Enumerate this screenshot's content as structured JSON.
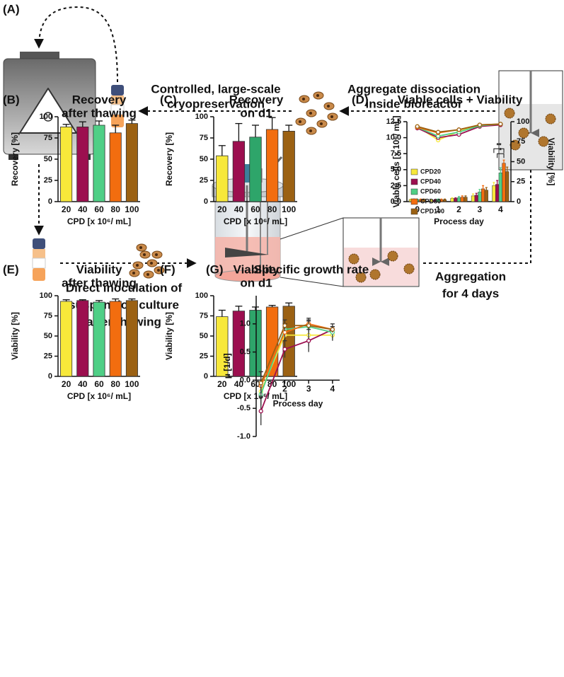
{
  "diagram": {
    "label": "(A)",
    "steps": [
      [
        "Controlled, large-scale",
        "cryopreservation"
      ],
      [
        "Aggregate dissociation",
        "inside bioreactor"
      ],
      [
        "Direct inoculation of",
        "suspension culture",
        "after thawing"
      ],
      [
        "Aggregation",
        "for 4 days"
      ]
    ]
  },
  "chart_data": [
    {
      "type": "bar",
      "label": "(B)",
      "title": [
        "Recovery",
        "after thawing"
      ],
      "categories": [
        "20",
        "40",
        "60",
        "80",
        "100"
      ],
      "values": [
        88,
        88,
        90,
        81,
        92
      ],
      "errors": [
        3,
        6,
        5,
        9,
        4
      ],
      "colors": [
        "#f7e83a",
        "#9c0f4f",
        "#4fcf86",
        "#f26d0f",
        "#9b6113"
      ],
      "ylim": [
        0,
        100
      ],
      "yticks": [
        0,
        25,
        50,
        75,
        100
      ],
      "xlabel": "CPD [x 10⁶/ mL]",
      "ylabel": "Recovery [%]"
    },
    {
      "type": "bar",
      "label": "(C)",
      "title": [
        "Recovery",
        "on d1"
      ],
      "categories": [
        "20",
        "40",
        "60",
        "80",
        "100"
      ],
      "values": [
        54,
        71,
        76,
        85,
        83
      ],
      "errors": [
        12,
        21,
        14,
        14,
        7
      ],
      "colors": [
        "#f7e83a",
        "#9c0f4f",
        "#2ea56a",
        "#f26d0f",
        "#9b6113"
      ],
      "ylim": [
        0,
        100
      ],
      "yticks": [
        0,
        25,
        50,
        75,
        100
      ],
      "xlabel": "CPD [x 10⁶/ mL]",
      "ylabel": "Recovery [%]"
    },
    {
      "type": "bar_line",
      "label": "(D)",
      "title": [
        "Viable cells + Viability"
      ],
      "categories": [
        "0",
        "1",
        "2",
        "3",
        "4"
      ],
      "series": [
        {
          "name": "CPD20",
          "color": "#f7e83a",
          "values": [
            0.3,
            0.2,
            0.5,
            0.9,
            2.5
          ],
          "errors": [
            0.1,
            0.1,
            0.1,
            0.3,
            0.5
          ]
        },
        {
          "name": "CPD40",
          "color": "#9c0f4f",
          "values": [
            0.3,
            0.2,
            0.5,
            1.0,
            2.7
          ],
          "errors": [
            0.1,
            0.1,
            0.1,
            0.3,
            0.6
          ]
        },
        {
          "name": "CPD60",
          "color": "#4fcf86",
          "values": [
            0.3,
            0.3,
            0.6,
            1.5,
            4.5
          ],
          "errors": [
            0.1,
            0.1,
            0.2,
            0.4,
            0.8
          ]
        },
        {
          "name": "CPD80",
          "color": "#f26d0f",
          "values": [
            0.3,
            0.3,
            0.7,
            2.0,
            6.0
          ],
          "errors": [
            0.1,
            0.1,
            0.2,
            0.5,
            0.5
          ]
        },
        {
          "name": "CPD100",
          "color": "#9b6113",
          "values": [
            0.3,
            0.3,
            0.7,
            1.8,
            4.7
          ],
          "errors": [
            0.1,
            0.1,
            0.2,
            0.4,
            0.7
          ]
        }
      ],
      "y2_series": [
        {
          "color": "#f7e83a",
          "axis": "y2",
          "values": [
            94,
            77,
            88,
            95,
            97
          ]
        },
        {
          "color": "#9c0f4f",
          "axis": "y2",
          "values": [
            92,
            80,
            84,
            94,
            96
          ]
        },
        {
          "color": "#4fcf86",
          "axis": "y2",
          "values": [
            93,
            82,
            87,
            95,
            97
          ]
        },
        {
          "color": "#f26d0f",
          "axis": "y2",
          "values": [
            93,
            86,
            90,
            96,
            97
          ]
        },
        {
          "color": "#9b6113",
          "axis": "y2",
          "values": [
            94,
            87,
            90,
            96,
            97
          ]
        }
      ],
      "ylim": [
        0,
        12.5
      ],
      "yticks": [
        {
          "value": 0,
          "label": "0.0"
        },
        {
          "value": 2.5,
          "label": "2.5"
        },
        {
          "value": 5,
          "label": "5.0"
        },
        {
          "value": 7.5,
          "label": "7.5"
        },
        {
          "value": 10,
          "label": "10.0"
        },
        {
          "value": 12.5,
          "label": "12.5"
        }
      ],
      "y2lim": [
        0,
        100
      ],
      "y2ticks": [
        0,
        25,
        50,
        75,
        100
      ],
      "xlabel": "Process day",
      "ylabel": "Viable cells [x 10⁶/ mL]",
      "y2label": "Viability [%]",
      "annotations": [
        "**",
        "*"
      ]
    },
    {
      "type": "bar",
      "label": "(E)",
      "title": [
        "Viability",
        "after thawing"
      ],
      "categories": [
        "20",
        "40",
        "60",
        "80",
        "100"
      ],
      "values": [
        93,
        94,
        92,
        93,
        94
      ],
      "errors": [
        2,
        1,
        2,
        3,
        2
      ],
      "colors": [
        "#f7e83a",
        "#9c0f4f",
        "#4fcf86",
        "#f26d0f",
        "#9b6113"
      ],
      "ylim": [
        0,
        100
      ],
      "yticks": [
        0,
        25,
        50,
        75,
        100
      ],
      "xlabel": "CPD [x 10⁶/ mL]",
      "ylabel": "Viability [%]"
    },
    {
      "type": "bar",
      "label": "(F)",
      "title": [
        "Viability",
        "on d1"
      ],
      "categories": [
        "20",
        "40",
        "60",
        "80",
        "100"
      ],
      "values": [
        74,
        81,
        82,
        86,
        87
      ],
      "errors": [
        8,
        6,
        4,
        2,
        4
      ],
      "colors": [
        "#f7e83a",
        "#9c0f4f",
        "#2ea56a",
        "#f26d0f",
        "#9b6113"
      ],
      "ylim": [
        0,
        100
      ],
      "yticks": [
        0,
        25,
        50,
        75,
        100
      ],
      "xlabel": "CPD [x 10⁶/ mL]",
      "ylabel": "Viability [%]"
    },
    {
      "type": "line",
      "label": "(G)",
      "title": [
        "Specific growth rate"
      ],
      "x": [
        1,
        2,
        3,
        4
      ],
      "series": [
        {
          "color": "#f7e83a",
          "values": [
            -0.2,
            0.8,
            0.8,
            0.8
          ],
          "errors": [
            0.2,
            0.1,
            0.2,
            0.1
          ]
        },
        {
          "color": "#9c0f4f",
          "values": [
            -0.55,
            0.55,
            0.7,
            0.9
          ],
          "errors": [
            0.25,
            0.15,
            0.2,
            0.1
          ]
        },
        {
          "color": "#4fcf86",
          "values": [
            -0.25,
            0.9,
            0.95,
            0.85
          ],
          "errors": [
            0.2,
            0.1,
            0.1,
            0.1
          ]
        },
        {
          "color": "#f26d0f",
          "values": [
            -0.1,
            0.85,
            1.0,
            0.9
          ],
          "errors": [
            0.25,
            0.15,
            0.1,
            0.05
          ]
        },
        {
          "color": "#9b6113",
          "values": [
            -0.05,
            0.97,
            0.97,
            0.9
          ],
          "errors": [
            0.2,
            0.1,
            0.1,
            0.05
          ]
        }
      ],
      "xlim": [
        0.8,
        4.3
      ],
      "xticks": [
        2,
        3,
        4
      ],
      "ylim": [
        -1,
        1.5
      ],
      "yticks": [
        {
          "value": -1,
          "label": "-1.0"
        },
        {
          "value": -0.5,
          "label": "-0.5"
        },
        {
          "value": 0,
          "label": "0.0"
        },
        {
          "value": 0.5,
          "label": "0.5"
        },
        {
          "value": 1,
          "label": "1.0"
        }
      ],
      "xlabel": "Process day",
      "ylabel": "μ [1/d]"
    }
  ]
}
